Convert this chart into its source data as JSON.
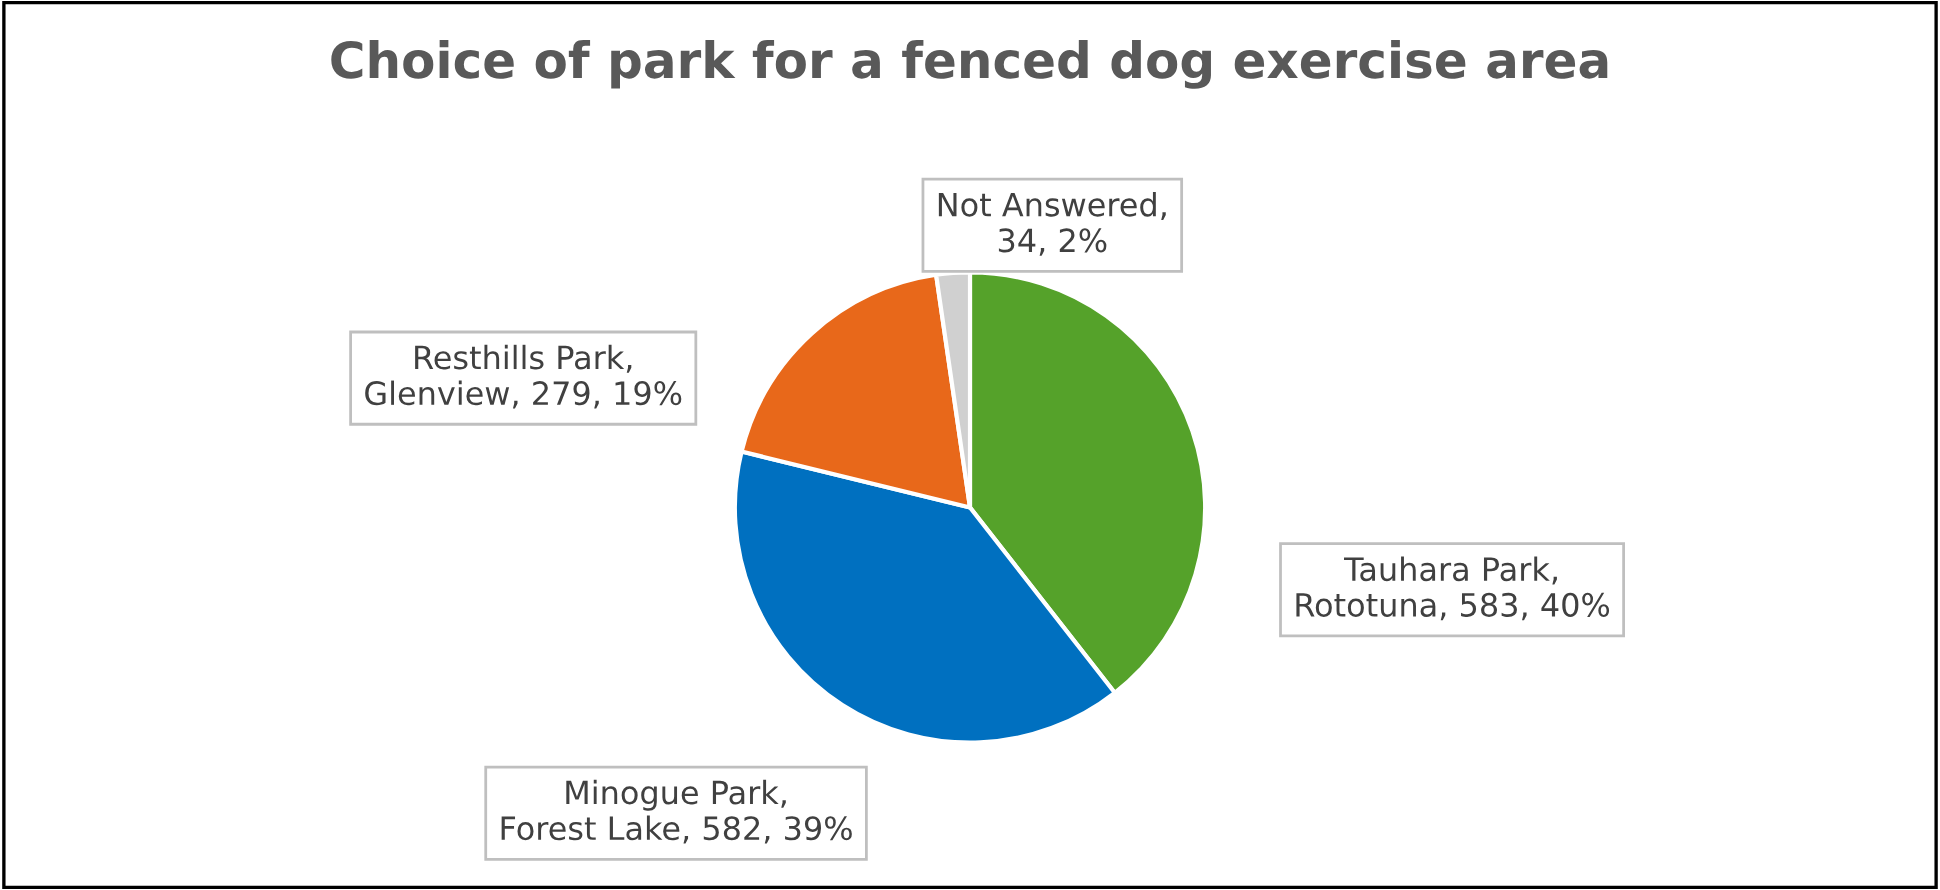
{
  "chart_data": {
    "type": "pie",
    "title": "Choice of park for a fenced dog exercise area",
    "categories": [
      "Tauhara Park, Rototuna, 583, 40%",
      "Minogue Park, Forest Lake, 582, 39%",
      "Resthills Park, Glenview, 279, 19%",
      "Not Answered, 34, 2%"
    ],
    "values": [
      583,
      582,
      279,
      34
    ],
    "colors": [
      "#55a22a",
      "#0070c0",
      "#e8681a",
      "#d0d0d0"
    ],
    "legend": false
  }
}
